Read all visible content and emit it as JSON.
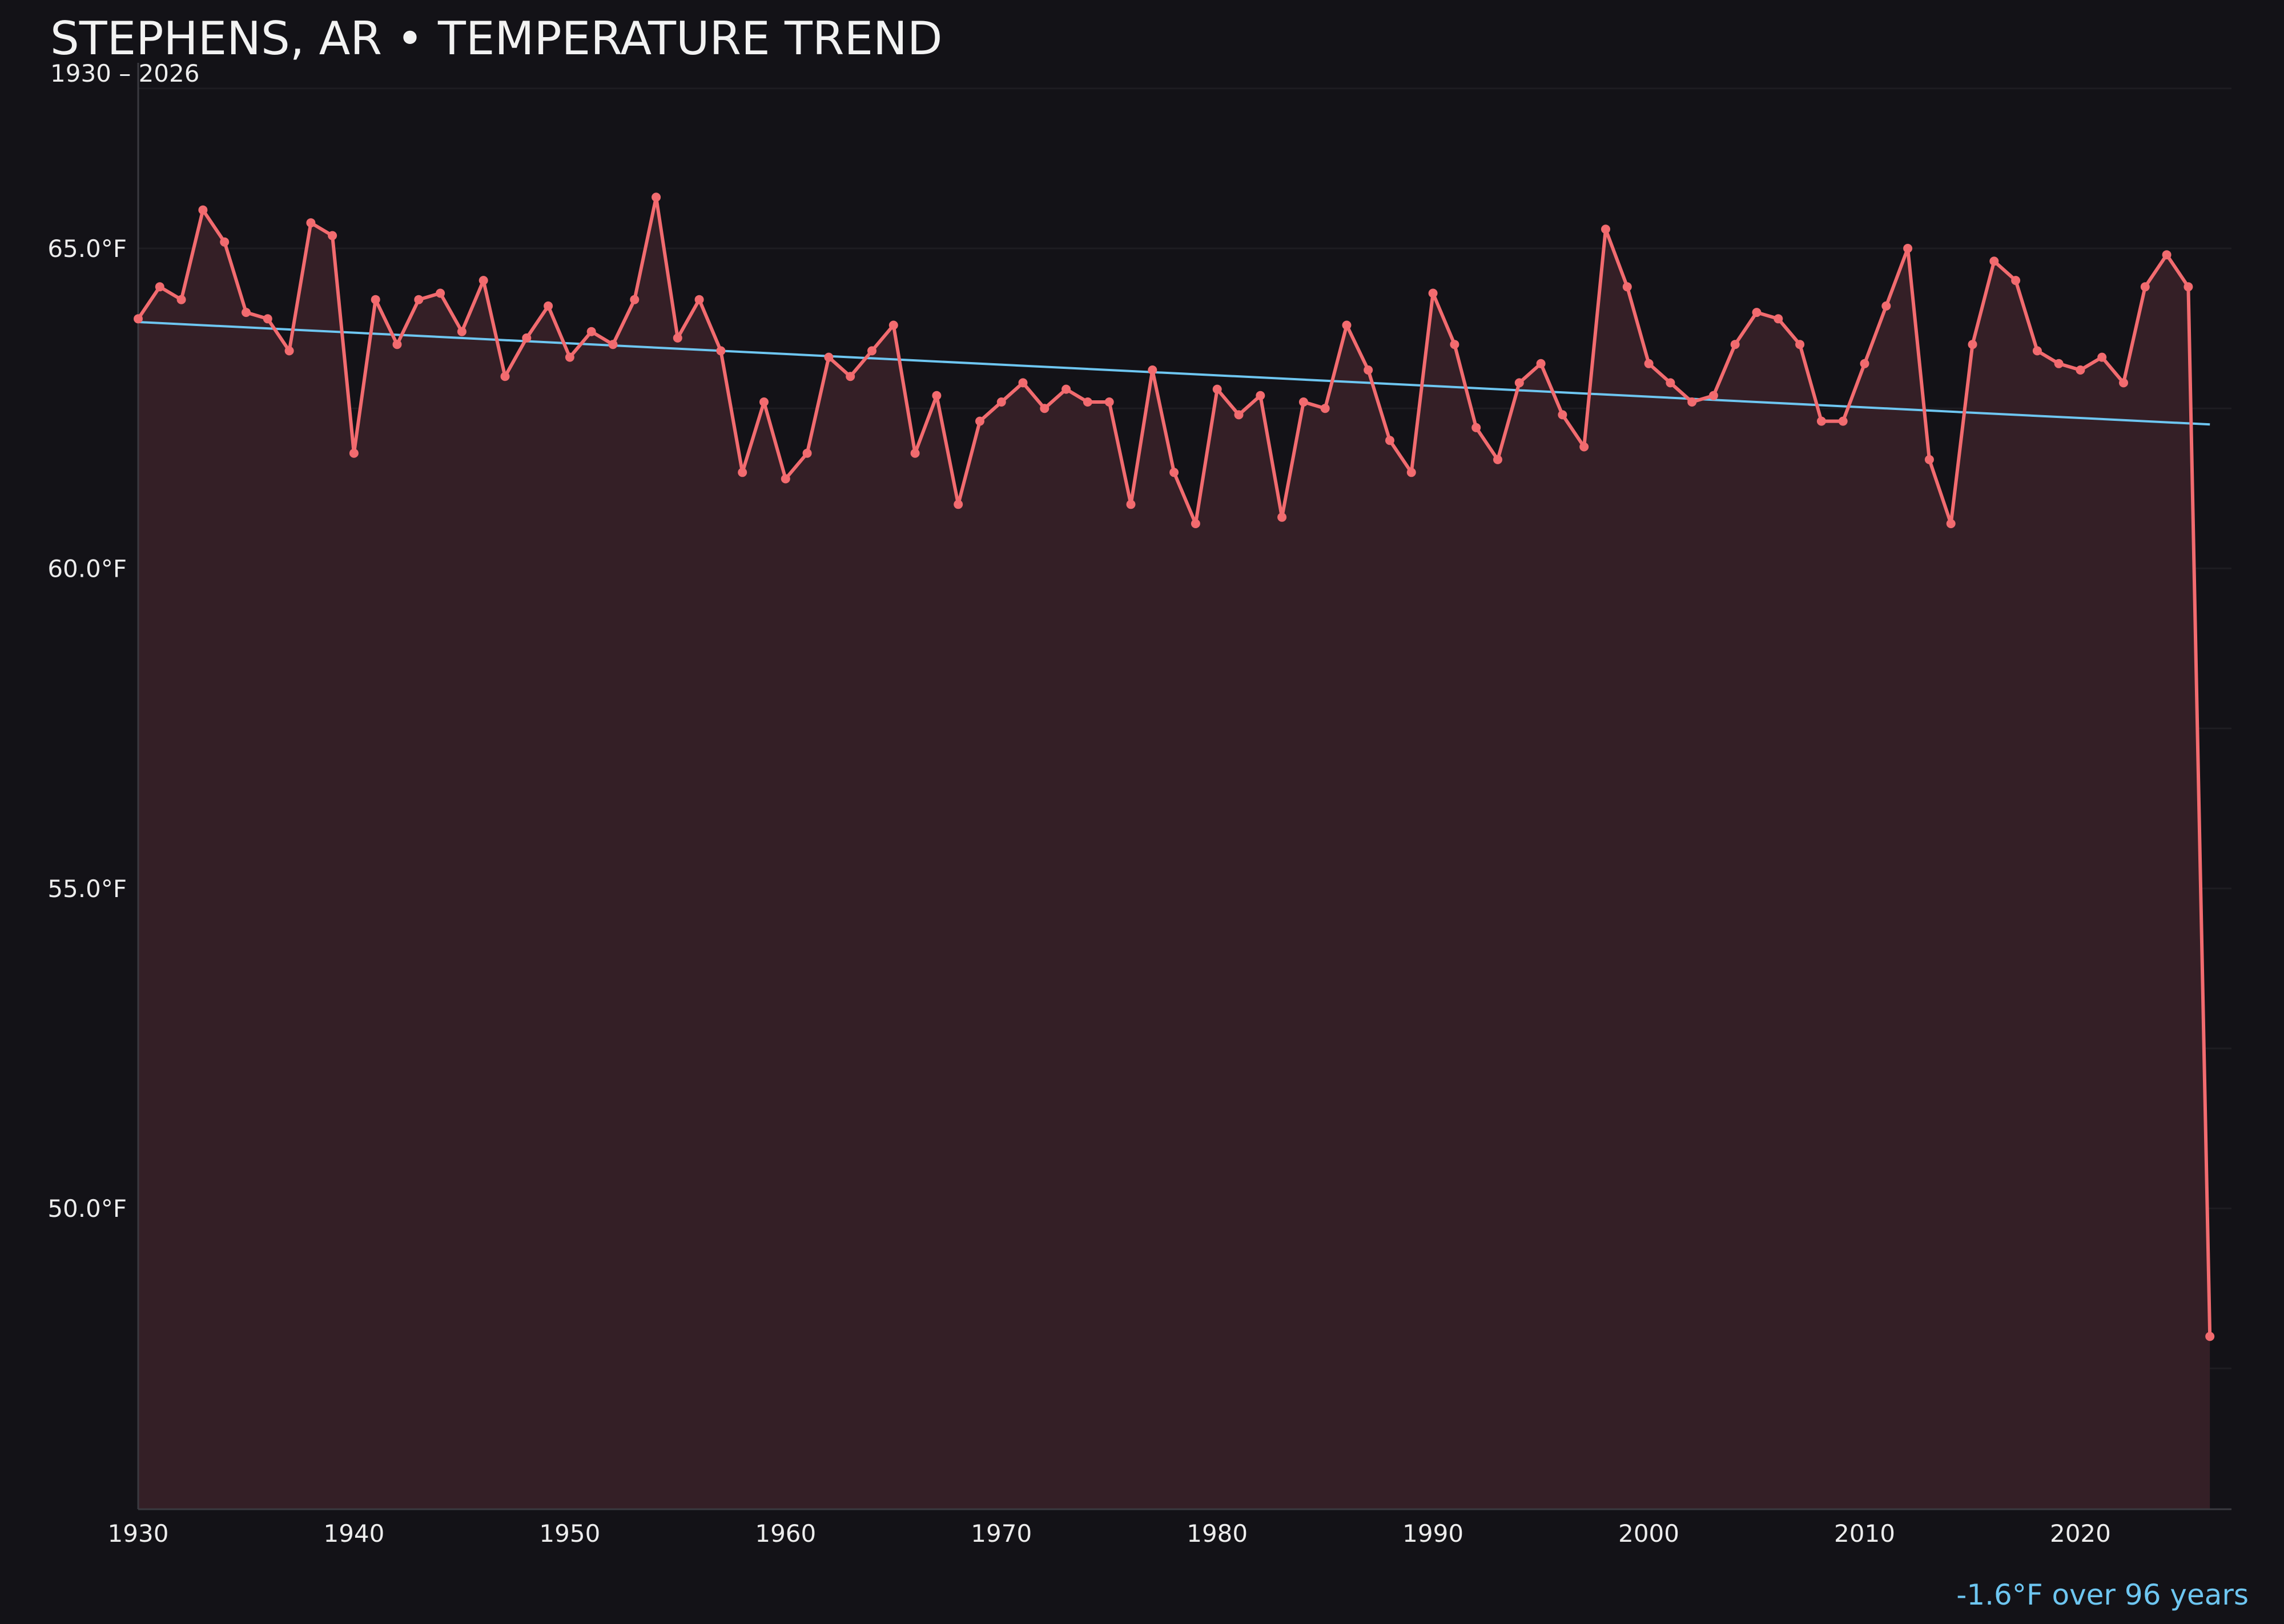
{
  "chart_data": {
    "type": "line",
    "title": "STEPHENS, AR • TEMPERATURE TREND",
    "subtitle": "1930 – 2026",
    "annotation": "-1.6°F over 96 years",
    "x": [
      1930,
      1931,
      1932,
      1933,
      1934,
      1935,
      1936,
      1937,
      1938,
      1939,
      1940,
      1941,
      1942,
      1943,
      1944,
      1945,
      1946,
      1947,
      1948,
      1949,
      1950,
      1951,
      1952,
      1953,
      1954,
      1955,
      1956,
      1957,
      1958,
      1959,
      1960,
      1961,
      1962,
      1963,
      1964,
      1965,
      1966,
      1967,
      1968,
      1969,
      1970,
      1971,
      1972,
      1973,
      1974,
      1975,
      1976,
      1977,
      1978,
      1979,
      1980,
      1981,
      1982,
      1983,
      1984,
      1985,
      1986,
      1987,
      1988,
      1989,
      1990,
      1991,
      1992,
      1993,
      1994,
      1995,
      1996,
      1997,
      1998,
      1999,
      2000,
      2001,
      2002,
      2003,
      2004,
      2005,
      2006,
      2007,
      2008,
      2009,
      2010,
      2011,
      2012,
      2013,
      2014,
      2015,
      2016,
      2017,
      2018,
      2019,
      2020,
      2021,
      2022,
      2023,
      2024,
      2025,
      2026
    ],
    "values": [
      63.9,
      64.4,
      64.2,
      65.6,
      65.1,
      64.0,
      63.9,
      63.4,
      65.4,
      65.2,
      61.8,
      64.2,
      63.5,
      64.2,
      64.3,
      63.7,
      64.5,
      63.0,
      63.6,
      64.1,
      63.3,
      63.7,
      63.5,
      64.2,
      65.8,
      63.6,
      64.2,
      63.4,
      61.5,
      62.6,
      61.4,
      61.8,
      63.3,
      63.0,
      63.4,
      63.8,
      61.8,
      62.7,
      61.0,
      62.3,
      62.6,
      62.9,
      62.5,
      62.8,
      62.6,
      62.6,
      61.0,
      63.1,
      61.5,
      60.7,
      62.8,
      62.4,
      62.7,
      60.8,
      62.6,
      62.5,
      63.8,
      63.1,
      62.0,
      61.5,
      64.3,
      63.5,
      62.2,
      61.7,
      62.9,
      63.2,
      62.4,
      61.9,
      65.3,
      64.4,
      63.2,
      62.9,
      62.6,
      62.7,
      63.5,
      64.0,
      63.9,
      63.5,
      62.3,
      62.3,
      63.2,
      64.1,
      65.0,
      61.7,
      60.7,
      63.5,
      64.8,
      64.5,
      63.4,
      63.2,
      63.1,
      63.3,
      62.9,
      64.4,
      64.9,
      64.4,
      48.0
    ],
    "trend": {
      "start": [
        1930,
        63.85
      ],
      "end": [
        2026,
        62.25
      ]
    },
    "x_ticks": [
      1930,
      1940,
      1950,
      1960,
      1970,
      1980,
      1990,
      2000,
      2010,
      2020
    ],
    "y_ticks": [
      50,
      55,
      60,
      65
    ],
    "y_tick_labels": [
      "50.0°F",
      "55.0°F",
      "60.0°F",
      "65.0°F"
    ],
    "xlim": [
      1930,
      2027
    ],
    "ylim": [
      45.3,
      67.9
    ],
    "grid": true,
    "colors": {
      "background": "#131217",
      "line": "#F26B6F",
      "fill": "#341F26",
      "trend": "#6EC6F1",
      "text": "#EDEDED",
      "annotation": "#6EC6F1",
      "grid": "#1E1D22",
      "axis": "#3A3A40"
    }
  }
}
